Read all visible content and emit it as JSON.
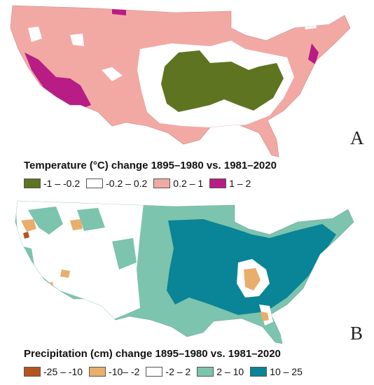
{
  "maps": [
    {
      "id": "A",
      "letter": "A",
      "legend_title": "Temperature (°C) change 1895–1980 vs. 1981–2020",
      "legend": [
        {
          "label": "-1 – -0.2",
          "color": "#5e7420"
        },
        {
          "label": "-0.2 – 0.2",
          "color": "#ffffff"
        },
        {
          "label": "0.2 – 1",
          "color": "#f2a9a4"
        },
        {
          "label": "1 – 2",
          "color": "#b81c85"
        }
      ]
    },
    {
      "id": "B",
      "letter": "B",
      "legend_title": "Precipitation (cm) change 1895–1980 vs. 1981–2020",
      "legend": [
        {
          "label": "-25 – -10",
          "color": "#b3551d"
        },
        {
          "label": "-10– -2",
          "color": "#e9ae6c"
        },
        {
          "label": "-2 – 2",
          "color": "#ffffff"
        },
        {
          "label": "2 – 10",
          "color": "#7cc4ad"
        },
        {
          "label": "10 – 25",
          "color": "#0a8497"
        }
      ]
    }
  ]
}
